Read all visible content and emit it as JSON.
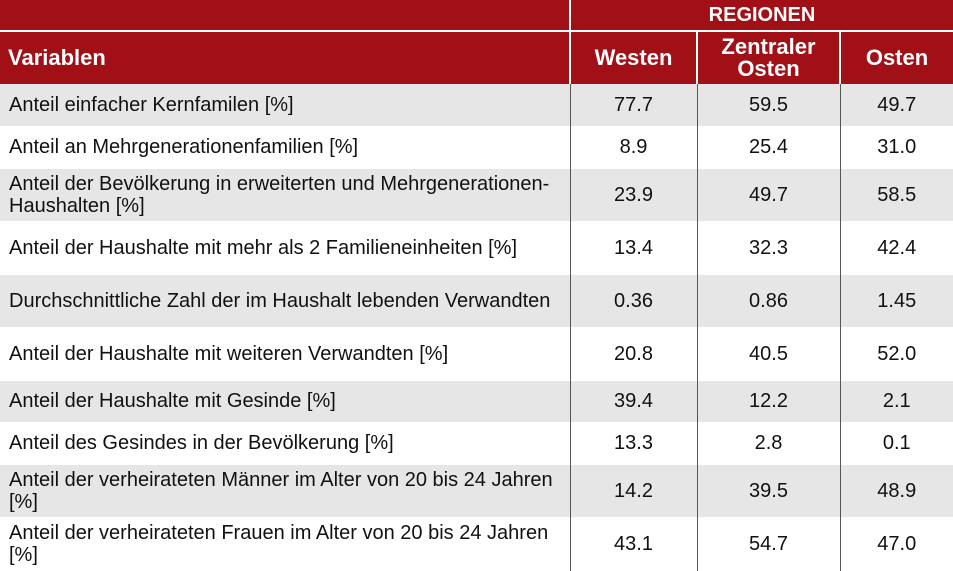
{
  "header": {
    "group_label": "REGIONEN",
    "variable_label": "Variablen",
    "columns": [
      "Westen",
      "Zentraler Osten",
      "Osten"
    ]
  },
  "rows": [
    {
      "label": "Anteil einfacher Kernfamilen [%]",
      "values": [
        "77.7",
        "59.5",
        "49.7"
      ]
    },
    {
      "label": "Anteil an Mehrgenerationenfamilien [%]",
      "values": [
        "8.9",
        "25.4",
        "31.0"
      ]
    },
    {
      "label": "Anteil der Bevölkerung in erweiterten und Mehrgenerationen-Haushalten [%]",
      "values": [
        "23.9",
        "49.7",
        "58.5"
      ]
    },
    {
      "label": "Anteil der Haushalte mit mehr als 2 Familieneinheiten [%]",
      "values": [
        "13.4",
        "32.3",
        "42.4"
      ]
    },
    {
      "label": "Durchschnittliche Zahl der im Haushalt lebenden Verwandten",
      "values": [
        "0.36",
        "0.86",
        "1.45"
      ]
    },
    {
      "label": "Anteil der Haushalte mit weiteren Verwandten [%]",
      "values": [
        "20.8",
        "40.5",
        "52.0"
      ]
    },
    {
      "label": "Anteil der Haushalte mit Gesinde [%]",
      "values": [
        "39.4",
        "12.2",
        "2.1"
      ]
    },
    {
      "label": "Anteil des Gesindes in der Bevölkerung [%]",
      "values": [
        "13.3",
        "2.8",
        "0.1"
      ]
    },
    {
      "label": "Anteil der verheirateten Männer im Alter von 20 bis 24 Jahren [%]",
      "values": [
        "14.2",
        "39.5",
        "48.9"
      ]
    },
    {
      "label": "Anteil der verheirateten Frauen im Alter von 20 bis 24 Jahren [%]",
      "values": [
        "43.1",
        "54.7",
        "47.0"
      ]
    }
  ],
  "colors": {
    "header_bg": "#a10f17",
    "row_shade": "#e6e6e6"
  }
}
